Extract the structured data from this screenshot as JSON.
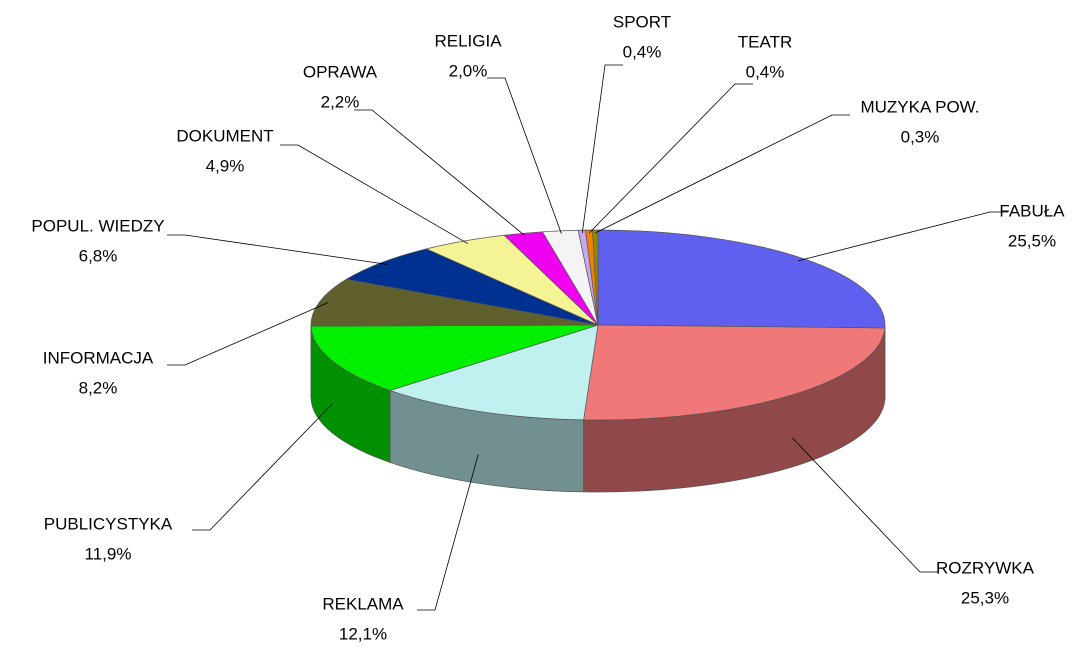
{
  "chart_data": {
    "type": "pie3d",
    "categories": [
      "FABUŁA",
      "ROZRYWKA",
      "REKLAMA",
      "PUBLICYSTYKA",
      "INFORMACJA",
      "POPUL. WIEDZY",
      "DOKUMENT",
      "OPRAWA",
      "RELIGIA",
      "SPORT",
      "TEATR",
      "MUZYKA POW."
    ],
    "values": [
      25.5,
      25.3,
      12.1,
      11.9,
      8.2,
      6.8,
      4.9,
      2.2,
      2.0,
      0.4,
      0.4,
      0.3
    ],
    "value_labels": [
      "25,5%",
      "25,3%",
      "12,1%",
      "11,9%",
      "8,2%",
      "6,8%",
      "4,9%",
      "2,2%",
      "2,0%",
      "0,4%",
      "0,4%",
      "0,3%"
    ],
    "colors": [
      "#6060f0",
      "#f07878",
      "#c0f0f0",
      "#00f000",
      "#60602e",
      "#003090",
      "#f4f494",
      "#f000f0",
      "#f4f4f4",
      "#c8a8f0",
      "#f08000",
      "#8c8c00"
    ]
  }
}
